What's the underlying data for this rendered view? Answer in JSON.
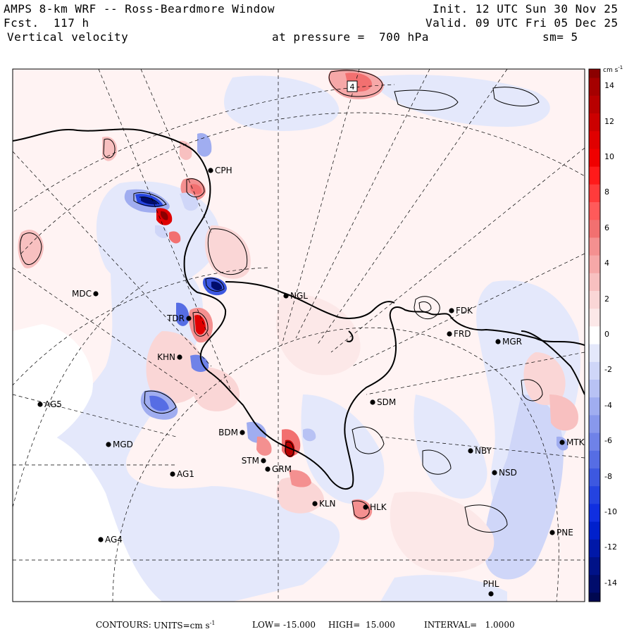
{
  "header": {
    "title": "AMPS 8-km WRF -- Ross-Beardmore Window",
    "forecast": "Fcst.  117 h",
    "field": "Vertical velocity",
    "init": "Init. 12 UTC Sun 30 Nov 25",
    "valid": "Valid. 09 UTC Fri 05 Dec 25",
    "pressure": "at pressure =  700 hPa",
    "smoothing": "sm= 5"
  },
  "colorbar": {
    "units_text": "cm s",
    "units_exp": "-1",
    "ticks": [
      "14",
      "12",
      "10",
      "8",
      "6",
      "4",
      "2",
      "0",
      "-2",
      "-4",
      "-6",
      "-8",
      "-10",
      "-12",
      "-14"
    ],
    "levels": [
      {
        "value": 15,
        "color": "#8b0000"
      },
      {
        "value": 14,
        "color": "#a50000"
      },
      {
        "value": 13,
        "color": "#b80000"
      },
      {
        "value": 12,
        "color": "#cc0000"
      },
      {
        "value": 11,
        "color": "#e00000"
      },
      {
        "value": 10,
        "color": "#f00000"
      },
      {
        "value": 9,
        "color": "#ff1a1a"
      },
      {
        "value": 8,
        "color": "#ff3b3b"
      },
      {
        "value": 7,
        "color": "#ff5a5a"
      },
      {
        "value": 6,
        "color": "#f27070"
      },
      {
        "value": 5,
        "color": "#f49090"
      },
      {
        "value": 4,
        "color": "#f6a8a8"
      },
      {
        "value": 3,
        "color": "#f8c0c0"
      },
      {
        "value": 2,
        "color": "#fad6d6"
      },
      {
        "value": 1,
        "color": "#fce8e8"
      },
      {
        "value": 0,
        "color": "#ffffff"
      },
      {
        "value": -1,
        "color": "#e4e8fb"
      },
      {
        "value": -2,
        "color": "#cfd6f8"
      },
      {
        "value": -3,
        "color": "#b8c2f4"
      },
      {
        "value": -4,
        "color": "#a0adf0"
      },
      {
        "value": -5,
        "color": "#8898ec"
      },
      {
        "value": -6,
        "color": "#6f82e8"
      },
      {
        "value": -7,
        "color": "#566de4"
      },
      {
        "value": -8,
        "color": "#3d58e0"
      },
      {
        "value": -9,
        "color": "#2443e0"
      },
      {
        "value": -10,
        "color": "#102fe0"
      },
      {
        "value": -11,
        "color": "#0020cc"
      },
      {
        "value": -12,
        "color": "#0018a8"
      },
      {
        "value": -13,
        "color": "#001288"
      },
      {
        "value": -14,
        "color": "#000c6c"
      },
      {
        "value": -15,
        "color": "#000850"
      }
    ]
  },
  "stations": [
    {
      "id": "CPH"
    },
    {
      "id": "MDC"
    },
    {
      "id": "NGL"
    },
    {
      "id": "FDK"
    },
    {
      "id": "FRD"
    },
    {
      "id": "MGR"
    },
    {
      "id": "TDR"
    },
    {
      "id": "KHN"
    },
    {
      "id": "AG5"
    },
    {
      "id": "SDM"
    },
    {
      "id": "BDM"
    },
    {
      "id": "MGD"
    },
    {
      "id": "NBY"
    },
    {
      "id": "MTK"
    },
    {
      "id": "STM"
    },
    {
      "id": "GRM"
    },
    {
      "id": "AG1"
    },
    {
      "id": "NSD"
    },
    {
      "id": "KLN"
    },
    {
      "id": "HLK"
    },
    {
      "id": "PNE"
    },
    {
      "id": "AG4"
    },
    {
      "id": "PHL"
    }
  ],
  "map_marker": "4",
  "footer": {
    "contours_label": "CONTOURS:",
    "units_label": "UNITS=cm s",
    "units_exp": "-1",
    "low": "LOW= -15.000",
    "high": "HIGH=  15.000",
    "interval": "INTERVAL=   1.0000"
  }
}
